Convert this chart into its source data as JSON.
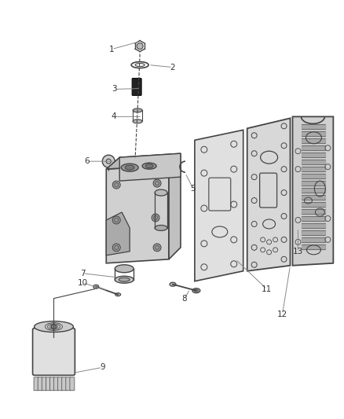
{
  "background_color": "#ffffff",
  "line_color": "#444444",
  "text_color": "#333333",
  "label_line_color": "#888888",
  "figsize": [
    4.38,
    5.33
  ],
  "dpi": 100
}
